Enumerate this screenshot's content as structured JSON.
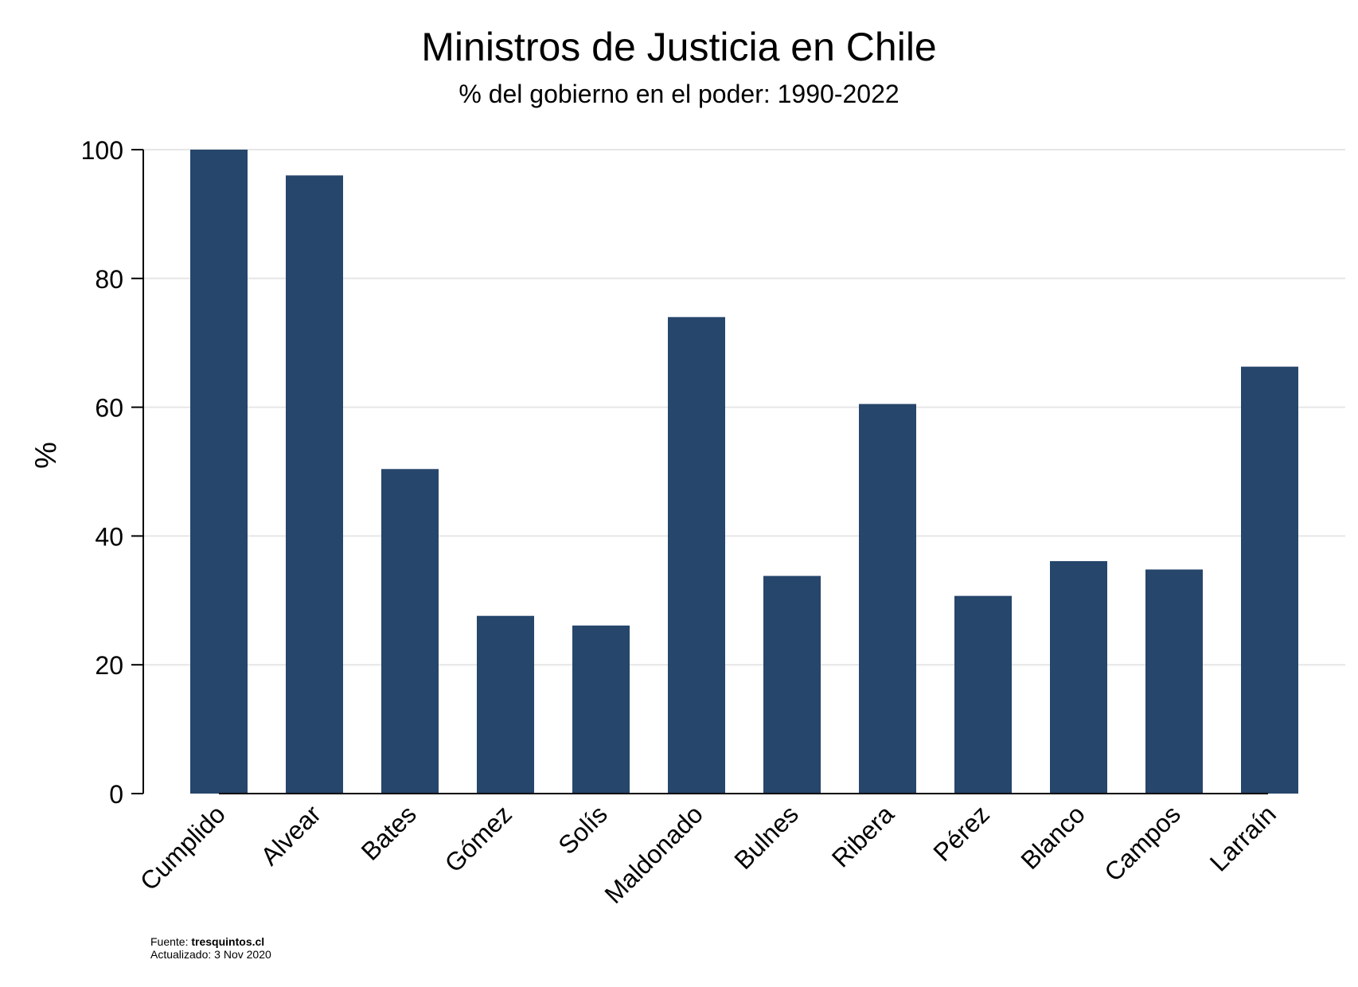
{
  "chart_data": {
    "type": "bar",
    "title": "Ministros de Justicia en Chile",
    "subtitle": "% del gobierno en el poder: 1990-2022",
    "ylabel": "%",
    "xlabel": "",
    "ylim": [
      0,
      100
    ],
    "yticks": [
      0,
      20,
      40,
      60,
      80,
      100
    ],
    "grid": true,
    "categories": [
      "Cumplido",
      "Alvear",
      "Bates",
      "Gómez",
      "Solís",
      "Maldonado",
      "Bulnes",
      "Ribera",
      "Pérez",
      "Blanco",
      "Campos",
      "Larraín"
    ],
    "values": [
      100,
      96,
      50.4,
      27.6,
      26.1,
      74,
      33.8,
      60.5,
      30.7,
      36.1,
      34.8,
      66.3
    ],
    "bar_color": "#26466b",
    "grid_color": "#e6e6e6"
  },
  "footer": {
    "source_label": "Fuente:",
    "source_value": "tresquintos.cl",
    "updated_label": "Actualizado:",
    "updated_value": "3 Nov 2020"
  }
}
